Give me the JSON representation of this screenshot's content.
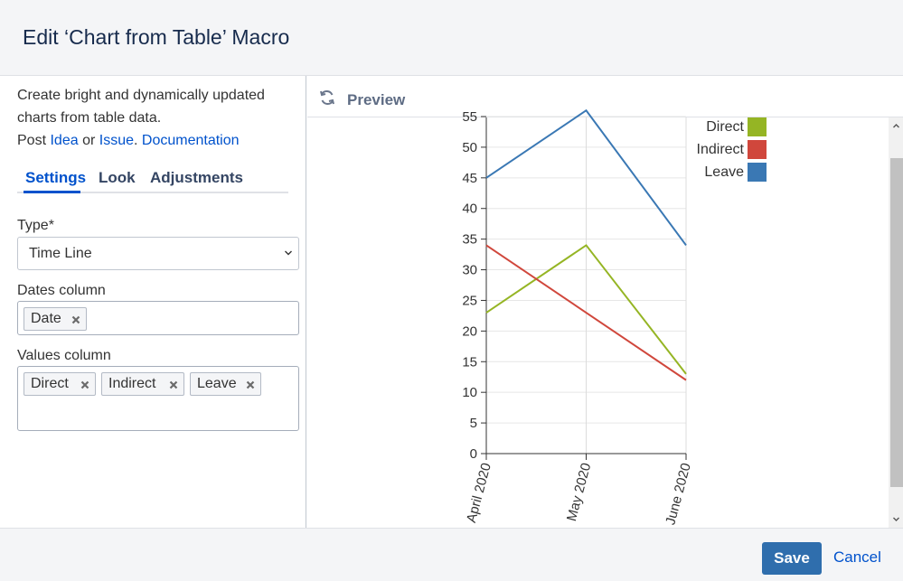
{
  "dialog": {
    "title": "Edit ‘Chart from Table’ Macro"
  },
  "intro": {
    "line1": "Create bright and dynamically updated",
    "line2": "charts from table data.",
    "post": "Post",
    "idea_link": "Idea",
    "or": "or",
    "issue_link": "Issue",
    "dot": ".",
    "documentation_link": "Documentation"
  },
  "tabs": [
    {
      "label": "Settings",
      "active": true
    },
    {
      "label": "Look",
      "active": false
    },
    {
      "label": "Adjustments",
      "active": false
    }
  ],
  "settings": {
    "type_label": "Type*",
    "type_value": "Time Line",
    "dates_label": "Dates column",
    "dates_tags": [
      "Date"
    ],
    "values_label": "Values column",
    "values_tags": [
      "Direct",
      "Indirect",
      "Leave"
    ]
  },
  "preview": {
    "title": "Preview"
  },
  "chart_data": {
    "type": "line",
    "x": [
      "April 2020",
      "May 2020",
      "June 2020"
    ],
    "ylim": [
      0,
      55
    ],
    "yticks": [
      0,
      5,
      10,
      15,
      20,
      25,
      30,
      35,
      40,
      45,
      50,
      55
    ],
    "grid": true,
    "legend_position": "top-right",
    "series": [
      {
        "name": "Direct",
        "values": [
          23,
          34,
          13
        ],
        "color": "#95b524"
      },
      {
        "name": "Indirect",
        "values": [
          34,
          23,
          12
        ],
        "color": "#d0473c"
      },
      {
        "name": "Leave",
        "values": [
          45,
          56,
          34
        ],
        "color": "#3a78b4"
      }
    ]
  },
  "footer": {
    "save_label": "Save",
    "cancel_label": "Cancel"
  },
  "colors": {
    "accent": "#0052cc",
    "save_button": "#2f6ead"
  },
  "icons": {
    "refresh": "refresh-icon",
    "chevron": "chevron-down-icon",
    "remove": "close-icon"
  }
}
